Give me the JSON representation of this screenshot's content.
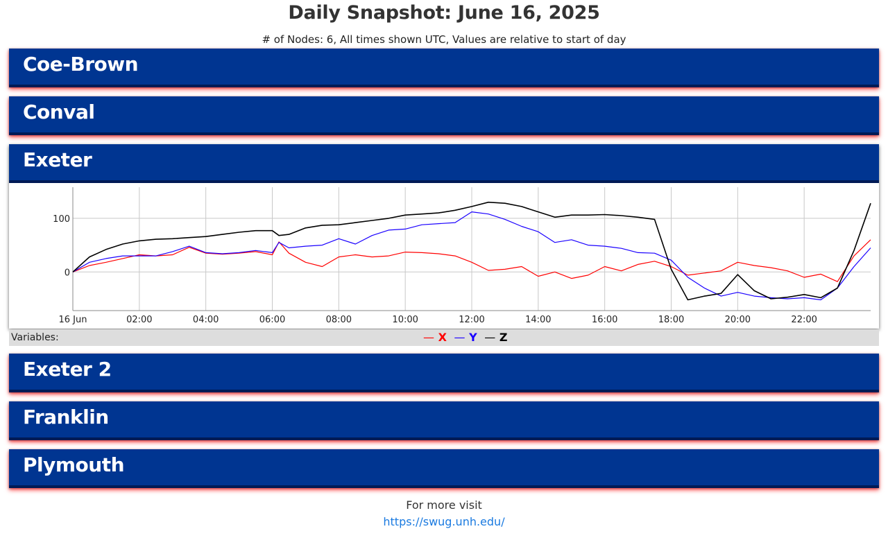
{
  "header": {
    "title": "Daily Snapshot: June 16, 2025",
    "subtitle": "# of Nodes: 6, All times shown UTC, Values are relative to start of day"
  },
  "nodes": [
    {
      "name": "Coe-Brown",
      "expanded": false
    },
    {
      "name": "Conval",
      "expanded": false
    },
    {
      "name": "Exeter",
      "expanded": true
    },
    {
      "name": "Exeter 2",
      "expanded": false
    },
    {
      "name": "Franklin",
      "expanded": false
    },
    {
      "name": "Plymouth",
      "expanded": false
    }
  ],
  "legend": {
    "label": "Variables:",
    "items": [
      {
        "name": "X",
        "color": "#ff0000"
      },
      {
        "name": "Y",
        "color": "#1a00ff"
      },
      {
        "name": "Z",
        "color": "#000000"
      }
    ]
  },
  "footer": {
    "text": "For more visit",
    "link": "https://swug.unh.edu/"
  },
  "chart_data": {
    "type": "line",
    "title": "",
    "xlabel": "",
    "ylabel": "",
    "x_tick_labels": [
      "16 Jun",
      "02:00",
      "04:00",
      "06:00",
      "08:00",
      "10:00",
      "12:00",
      "14:00",
      "16:00",
      "18:00",
      "20:00",
      "22:00"
    ],
    "x_ticks_hours": [
      0,
      2,
      4,
      6,
      8,
      10,
      12,
      14,
      16,
      18,
      20,
      22
    ],
    "xlim_hours": [
      0,
      24
    ],
    "y_ticks": [
      0,
      100
    ],
    "ylim": [
      -72,
      158
    ],
    "grid": true,
    "series": [
      {
        "name": "X",
        "color": "#ff0000",
        "x": [
          0,
          0.5,
          1,
          1.5,
          2,
          2.5,
          3,
          3.5,
          4,
          4.5,
          5,
          5.5,
          6,
          6.2,
          6.5,
          7,
          7.5,
          8,
          8.5,
          9,
          9.5,
          10,
          10.5,
          11,
          11.5,
          12,
          12.5,
          13,
          13.5,
          14,
          14.5,
          15,
          15.5,
          16,
          16.5,
          17,
          17.5,
          18,
          18.5,
          19,
          19.5,
          20,
          20.5,
          21,
          21.5,
          22,
          22.5,
          23,
          23.5,
          24
        ],
        "y": [
          0,
          12,
          18,
          25,
          32,
          30,
          32,
          46,
          35,
          33,
          35,
          38,
          32,
          56,
          35,
          18,
          10,
          28,
          32,
          28,
          30,
          37,
          36,
          34,
          30,
          18,
          3,
          5,
          10,
          -8,
          0,
          -12,
          -6,
          10,
          2,
          14,
          20,
          10,
          -6,
          -2,
          2,
          18,
          12,
          8,
          2,
          -10,
          -4,
          -18,
          30,
          60
        ]
      },
      {
        "name": "Y",
        "color": "#1a00ff",
        "x": [
          0,
          0.5,
          1,
          1.5,
          2,
          2.5,
          3,
          3.5,
          4,
          4.5,
          5,
          5.5,
          6,
          6.2,
          6.5,
          7,
          7.5,
          8,
          8.5,
          9,
          9.5,
          10,
          10.5,
          11,
          11.5,
          12,
          12.5,
          13,
          13.5,
          14,
          14.5,
          15,
          15.5,
          16,
          16.5,
          17,
          17.5,
          18,
          18.5,
          19,
          19.5,
          20,
          20.5,
          21,
          21.5,
          22,
          22.5,
          23,
          23.5,
          24
        ],
        "y": [
          0,
          18,
          25,
          30,
          30,
          30,
          38,
          48,
          36,
          34,
          36,
          40,
          36,
          55,
          45,
          48,
          50,
          62,
          52,
          68,
          78,
          80,
          88,
          90,
          92,
          112,
          108,
          98,
          85,
          75,
          55,
          60,
          50,
          48,
          44,
          36,
          35,
          22,
          -10,
          -30,
          -45,
          -38,
          -45,
          -48,
          -50,
          -48,
          -52,
          -30,
          10,
          45
        ]
      },
      {
        "name": "Z",
        "color": "#000000",
        "x": [
          0,
          0.5,
          1,
          1.5,
          2,
          2.5,
          3,
          3.5,
          4,
          4.5,
          5,
          5.5,
          6,
          6.2,
          6.5,
          7,
          7.5,
          8,
          8.5,
          9,
          9.5,
          10,
          10.5,
          11,
          11.5,
          12,
          12.5,
          13,
          13.5,
          14,
          14.5,
          15,
          15.5,
          16,
          16.5,
          17,
          17.5,
          18,
          18.5,
          19,
          19.5,
          20,
          20.5,
          21,
          21.5,
          22,
          22.5,
          23,
          23.5,
          24
        ],
        "y": [
          0,
          28,
          42,
          52,
          58,
          61,
          62,
          64,
          66,
          70,
          74,
          77,
          77,
          68,
          70,
          82,
          87,
          88,
          92,
          96,
          100,
          106,
          108,
          110,
          115,
          122,
          130,
          128,
          122,
          112,
          102,
          106,
          106,
          107,
          105,
          102,
          98,
          5,
          -52,
          -45,
          -40,
          -5,
          -35,
          -50,
          -47,
          -42,
          -48,
          -30,
          40,
          128
        ]
      }
    ]
  }
}
